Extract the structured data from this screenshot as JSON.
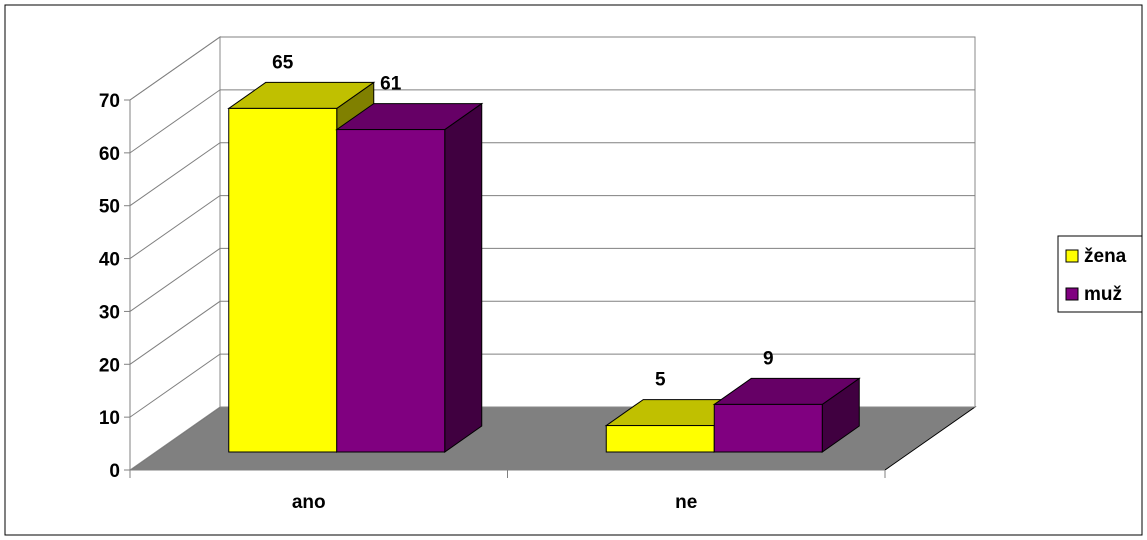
{
  "chart_data": {
    "type": "bar",
    "categories": [
      "ano",
      "ne"
    ],
    "series": [
      {
        "name": "žena",
        "values": [
          65,
          5
        ],
        "color": "#FFFF00"
      },
      {
        "name": "muž",
        "values": [
          61,
          9
        ],
        "color": "#800080"
      }
    ],
    "y_ticks": [
      "0",
      "10",
      "20",
      "30",
      "40",
      "50",
      "60",
      "70"
    ],
    "ylim": [
      0,
      70
    ],
    "grid": true,
    "legend_position": "right",
    "colors": {
      "wall": "#FFFFFF",
      "floor": "#808080",
      "zena_top": "#C0C000",
      "zena_side": "#808000",
      "muz_top": "#660066",
      "muz_side": "#400040"
    }
  }
}
